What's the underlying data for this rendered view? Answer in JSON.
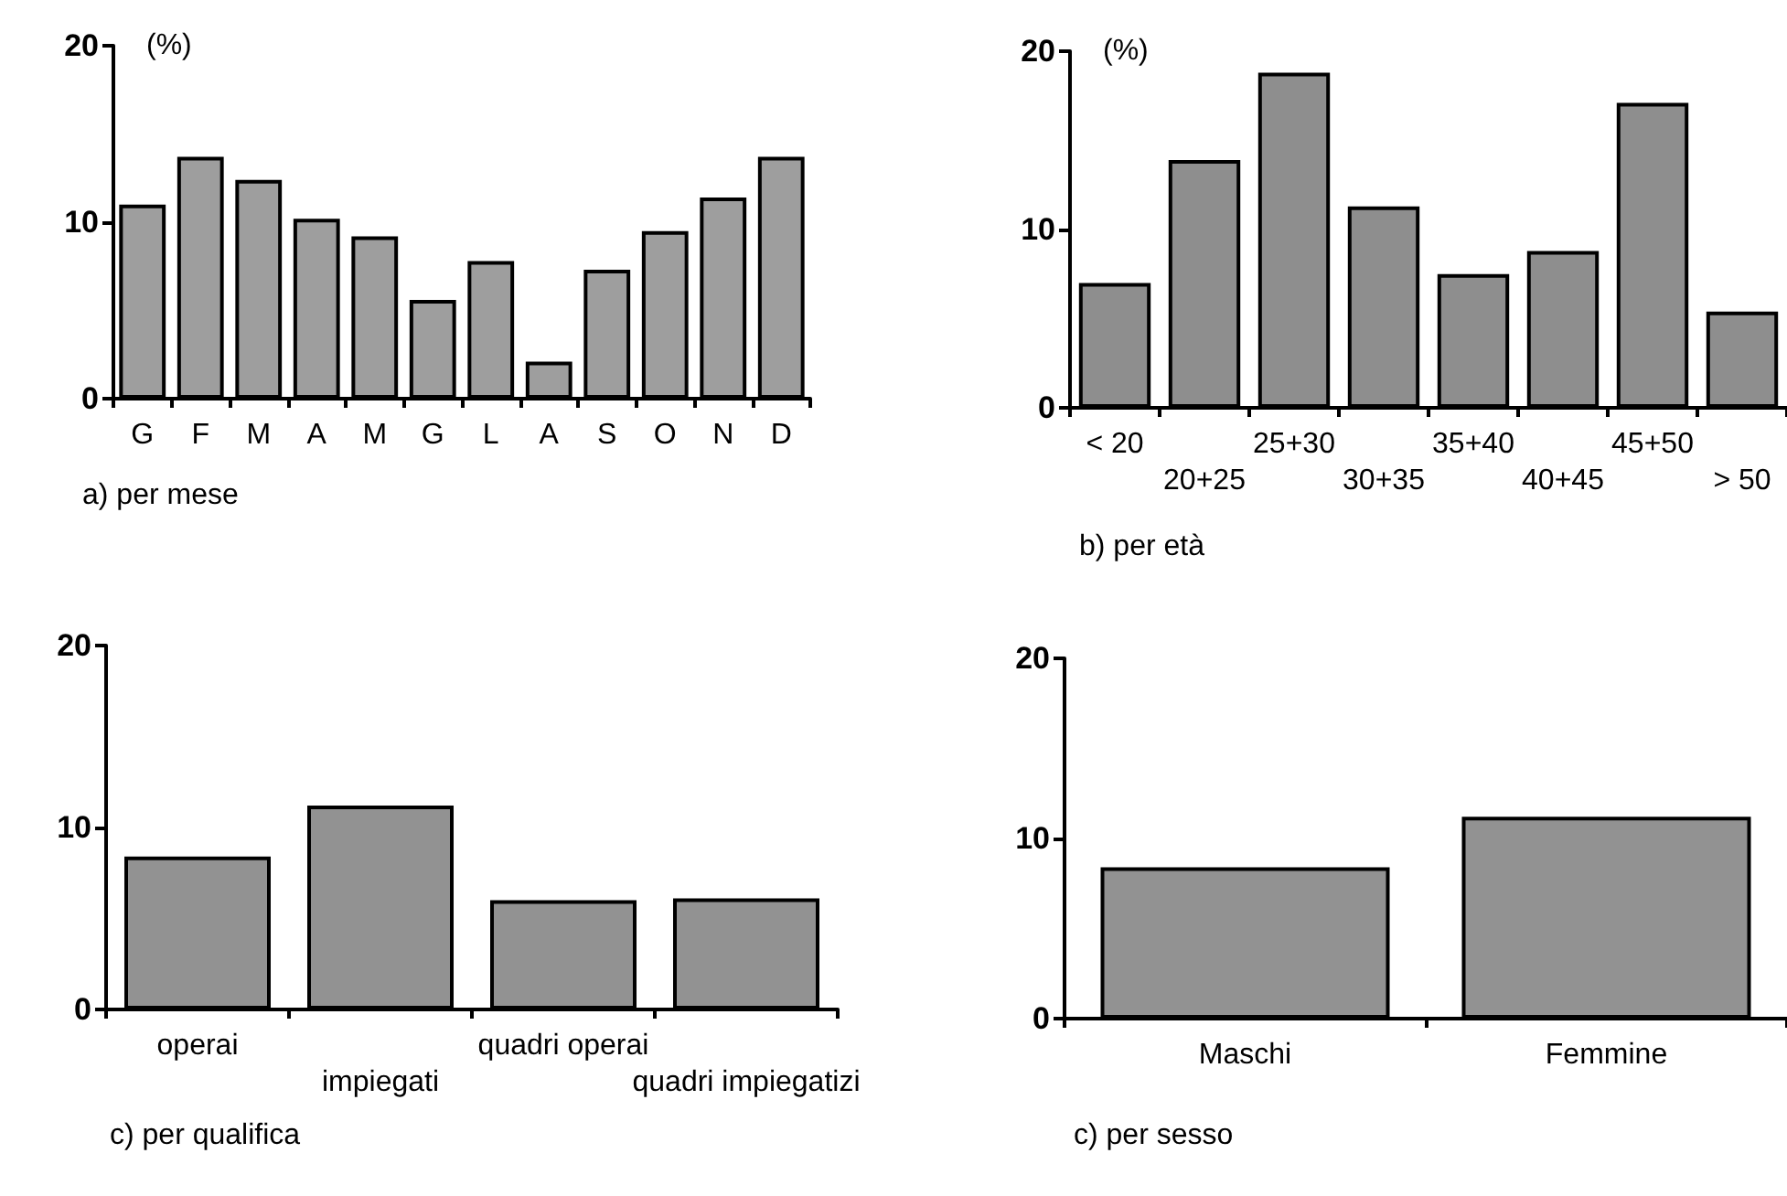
{
  "chart_data": [
    {
      "type": "bar",
      "title": "a) per mese",
      "ylabel": "(%)",
      "categories": [
        "G",
        "F",
        "M",
        "A",
        "M",
        "G",
        "L",
        "A",
        "S",
        "O",
        "N",
        "D"
      ],
      "values": [
        11.0,
        13.7,
        12.4,
        10.2,
        9.2,
        5.6,
        7.8,
        2.1,
        7.3,
        9.5,
        11.4,
        13.7
      ],
      "color": "#9e9e9e",
      "ylim": [
        0,
        20
      ],
      "yticks": [
        0,
        10,
        20
      ]
    },
    {
      "type": "bar",
      "title": "b) per età",
      "ylabel": "(%)",
      "categories": [
        "< 20",
        "20+25",
        "25+30",
        "30+35",
        "35+40",
        "40+45",
        "45+50",
        "> 50"
      ],
      "values": [
        7.0,
        13.9,
        18.8,
        11.3,
        7.5,
        8.8,
        17.1,
        5.4
      ],
      "color": "#8e8e8e",
      "ylim": [
        0,
        20
      ],
      "yticks": [
        0,
        10,
        20
      ]
    },
    {
      "type": "bar",
      "title": "c) per qualifica",
      "categories": [
        "operai",
        "impiegati",
        "quadri operai",
        "quadri impiegatizi"
      ],
      "values": [
        8.4,
        11.2,
        6.0,
        6.1
      ],
      "color": "#929292",
      "ylim": [
        0,
        20
      ],
      "yticks": [
        0,
        10,
        20
      ]
    },
    {
      "type": "bar",
      "title": "c) per sesso",
      "categories": [
        "Maschi",
        "Femmine"
      ],
      "values": [
        8.4,
        11.2
      ],
      "color": "#929292",
      "ylim": [
        0,
        20
      ],
      "yticks": [
        0,
        10,
        20
      ]
    }
  ]
}
